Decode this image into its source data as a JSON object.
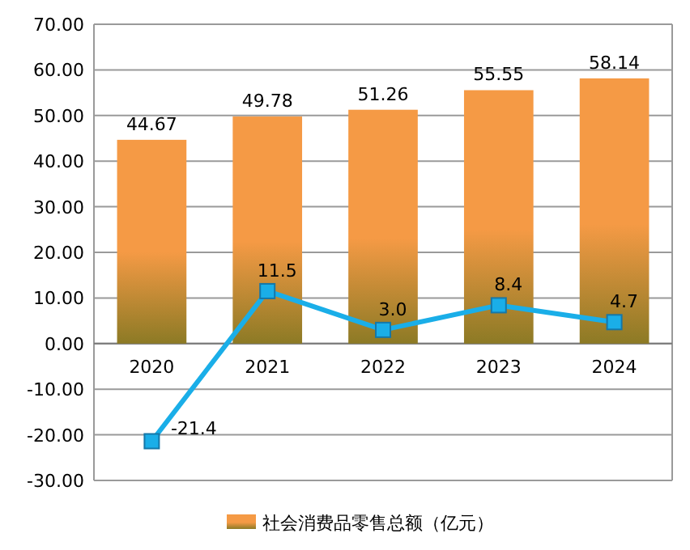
{
  "chart_data": {
    "type": "bar",
    "categories": [
      "2020",
      "2021",
      "2022",
      "2023",
      "2024"
    ],
    "series": [
      {
        "name": "社会消费品零售总额（亿元）",
        "color": "#f59a45",
        "values": [
          44.67,
          49.78,
          51.26,
          55.55,
          58.14
        ],
        "value_labels": [
          "44.67",
          "49.78",
          "51.26",
          "55.55",
          "58.14"
        ]
      },
      {
        "type": "line",
        "color": "#1aaee8",
        "marker": "square",
        "values": [
          -21.4,
          11.5,
          3.0,
          8.4,
          4.7
        ],
        "value_labels": [
          "-21.4",
          "11.5",
          "3.0",
          "8.4",
          "4.7"
        ]
      }
    ],
    "ylim": [
      -30,
      70
    ],
    "yticks": [
      {
        "value": -30,
        "label": "-30.00"
      },
      {
        "value": -20,
        "label": "-20.00"
      },
      {
        "value": -10,
        "label": "-10.00"
      },
      {
        "value": 0,
        "label": "0.00"
      },
      {
        "value": 10,
        "label": "10.00"
      },
      {
        "value": 20,
        "label": "20.00"
      },
      {
        "value": 30,
        "label": "30.00"
      },
      {
        "value": 40,
        "label": "40.00"
      },
      {
        "value": 50,
        "label": "50.00"
      },
      {
        "value": 60,
        "label": "60.00"
      },
      {
        "value": 70,
        "label": "70.00"
      }
    ],
    "grid": "y",
    "legend": "bottom"
  }
}
